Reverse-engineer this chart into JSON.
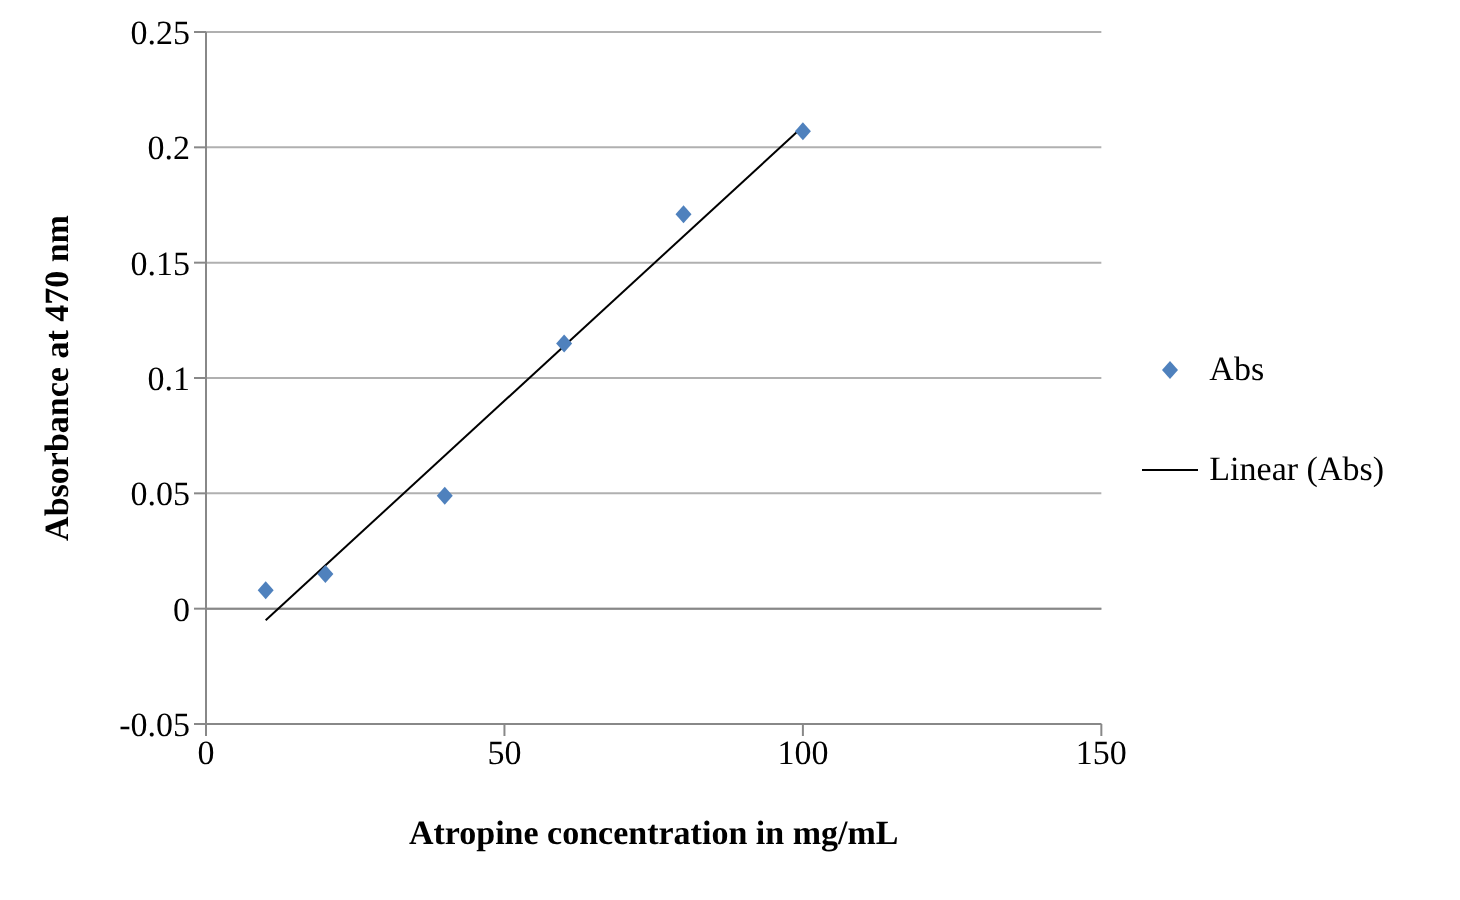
{
  "chart_data": {
    "type": "scatter",
    "xlabel": "Atropine concentration in mg/mL",
    "ylabel": "Absorbance at 470 nm",
    "series": [
      {
        "name": "Abs",
        "color": "#4f81bd",
        "marker": "diamond",
        "x": [
          10,
          20,
          40,
          60,
          80,
          100
        ],
        "values": [
          0.008,
          0.015,
          0.049,
          0.115,
          0.171,
          0.207
        ]
      },
      {
        "name": "Linear (Abs)",
        "type": "line",
        "color": "#000000",
        "x": [
          10,
          100
        ],
        "values": [
          -0.005,
          0.209
        ]
      }
    ],
    "xlim": [
      0,
      150
    ],
    "xticks": [
      0,
      50,
      100,
      150
    ],
    "ylim": [
      -0.05,
      0.25
    ],
    "yticks": [
      -0.05,
      0,
      0.05,
      0.1,
      0.15,
      0.2,
      0.25
    ],
    "grid": "y",
    "legend": "right"
  }
}
